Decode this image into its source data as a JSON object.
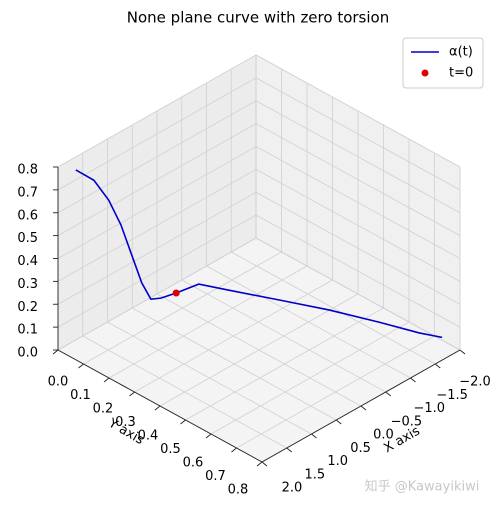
{
  "chart_data": {
    "type": "line3d",
    "title": "None plane curve with  zero torsion",
    "xlabel": "X axis",
    "ylabel": "Y axis",
    "xlim": [
      -2.0,
      2.0
    ],
    "ylim": [
      0.0,
      0.8
    ],
    "zlim": [
      0.0,
      0.8
    ],
    "xticks": [
      {
        "value": -2.0,
        "label": "−2.0"
      },
      {
        "value": -1.5,
        "label": "−1.5"
      },
      {
        "value": -1.0,
        "label": "−1.0"
      },
      {
        "value": -0.5,
        "label": "−0.5"
      },
      {
        "value": 0.0,
        "label": "0.0"
      },
      0.5,
      {
        "value": 1.0,
        "label": "1.0"
      },
      1.5,
      {
        "value": 2.0,
        "label": "2.0"
      }
    ],
    "yticks": [
      {
        "value": 0.0,
        "label": "0.0"
      },
      0.1,
      0.2,
      0.3,
      0.4,
      0.5,
      0.6,
      0.7,
      0.8
    ],
    "zticks": [
      {
        "value": 0.0,
        "label": "0.0"
      },
      0.1,
      0.2,
      0.3,
      0.4,
      0.5,
      0.6,
      0.7,
      0.8
    ],
    "grid": true,
    "legend": "upper right",
    "series": [
      {
        "name": "α(t)",
        "kind": "line",
        "color": "#0000cc",
        "x": [
          2.0,
          1.8,
          1.64,
          1.5,
          1.38,
          1.27,
          1.17,
          1.06,
          0.89,
          0.64,
          0.31,
          -0.25,
          -0.8,
          -1.35,
          -1.8,
          -2.05
        ],
        "y": [
          0.07,
          0.102,
          0.129,
          0.15,
          0.169,
          0.187,
          0.203,
          0.221,
          0.248,
          0.288,
          0.342,
          0.431,
          0.519,
          0.608,
          0.679,
          0.72
        ],
        "z": [
          0.83,
          0.78,
          0.69,
          0.577,
          0.442,
          0.318,
          0.245,
          0.247,
          0.265,
          0.298,
          0.264,
          0.207,
          0.15,
          0.084,
          0.025,
          0.0
        ]
      },
      {
        "name": "t=0",
        "kind": "scatter",
        "color": "#dd0000",
        "x": [
          0.89
        ],
        "y": [
          0.248
        ],
        "z": [
          0.265
        ]
      }
    ],
    "watermark": "知乎 @Kawayikiwi"
  }
}
